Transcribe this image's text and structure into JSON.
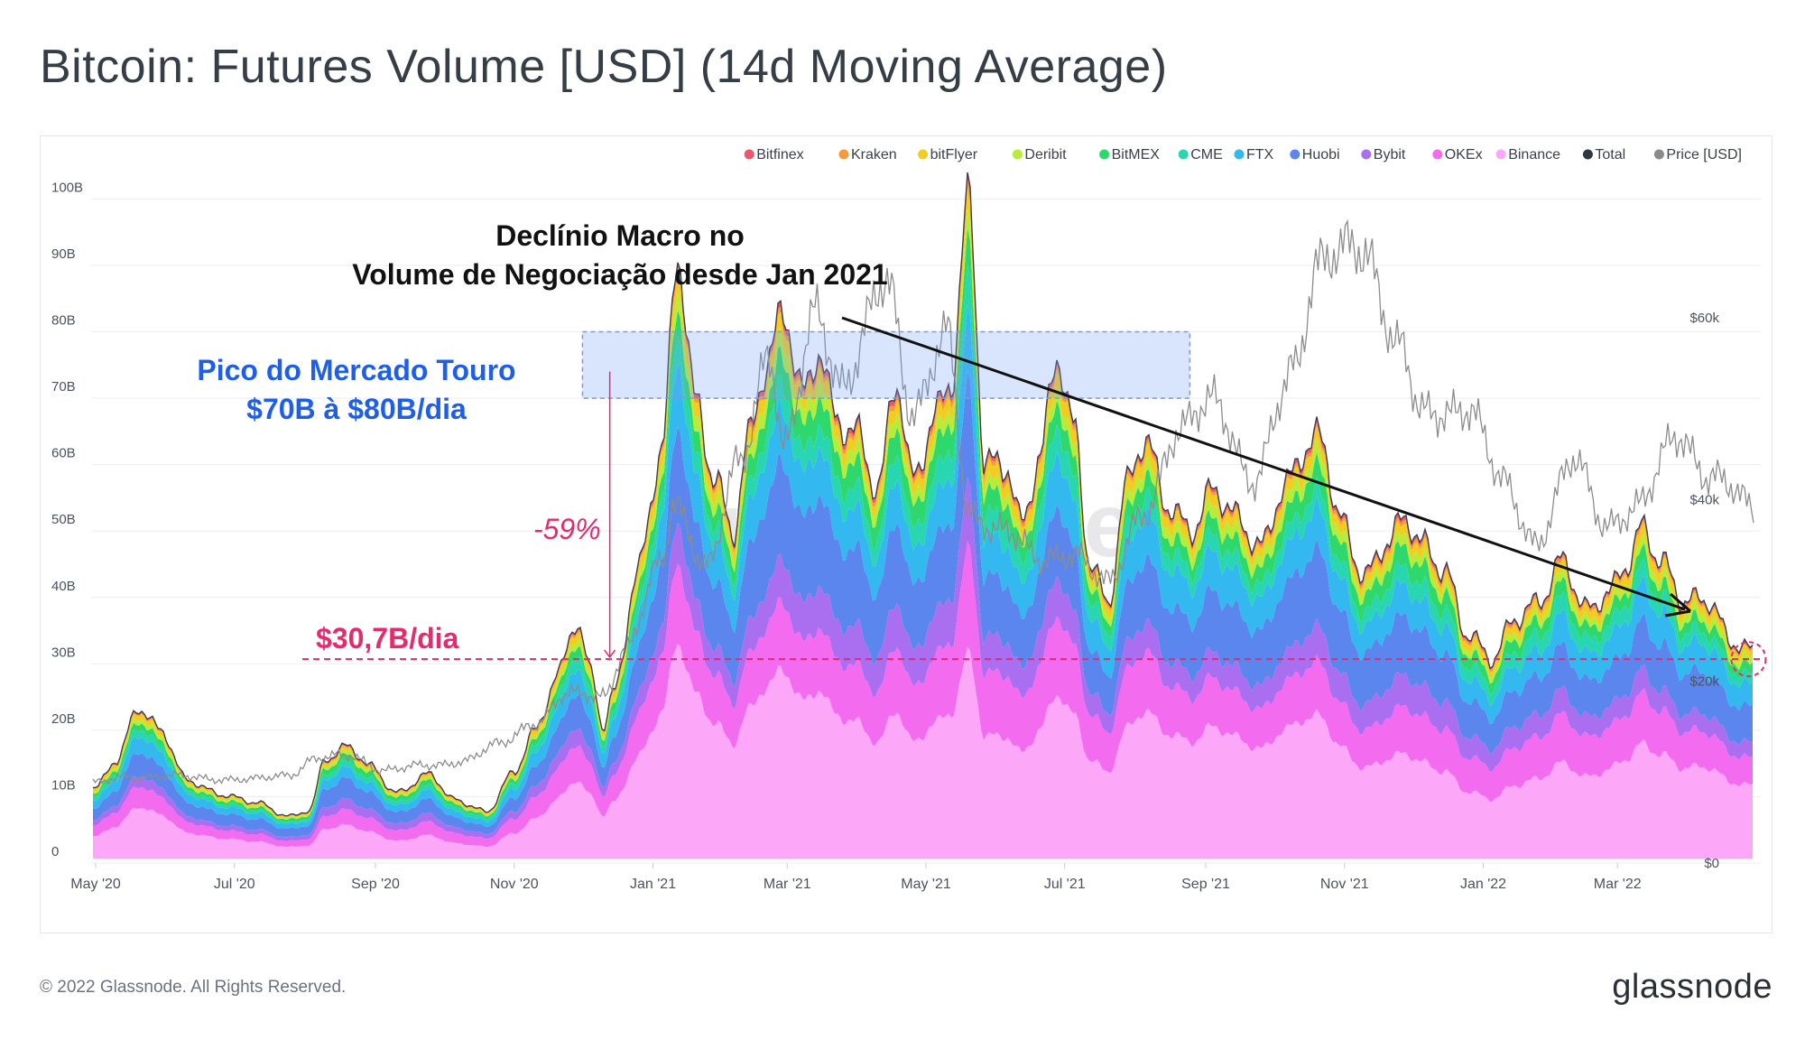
{
  "title": "Bitcoin: Futures Volume [USD] (14d Moving Average)",
  "footer": {
    "copyright": "© 2022 Glassnode. All Rights Reserved.",
    "logo": "glassnode"
  },
  "watermark": "glassnode",
  "annotations": {
    "macro_decline": [
      "Declínio Macro no",
      "Volume de Negociação desde Jan 2021"
    ],
    "bull_peak": [
      "Pico do Mercado Touro",
      "$70B à $80B/dia"
    ],
    "drop_pct": "-59%",
    "current_level": "$30,7B/dia"
  },
  "chart_data": {
    "type": "area",
    "stacked": true,
    "title": "Bitcoin: Futures Volume [USD] (14d Moving Average)",
    "x_ticks": [
      "May '20",
      "Jul '20",
      "Sep '20",
      "Nov '20",
      "Jan '21",
      "Mar '21",
      "May '21",
      "Jul '21",
      "Sep '21",
      "Nov '21",
      "Jan '22",
      "Mar '22"
    ],
    "y_left_ticks": [
      "0",
      "10B",
      "20B",
      "30B",
      "40B",
      "50B",
      "60B",
      "70B",
      "80B",
      "90B",
      "100B"
    ],
    "y_left_range_B": [
      0,
      104
    ],
    "y_right_ticks": [
      "$0",
      "$20k",
      "$40k",
      "$60k"
    ],
    "y_right_range_k": [
      0,
      76
    ],
    "legend_position": "top-right",
    "legend": [
      {
        "name": "Bitfinex",
        "color": "#f0566b"
      },
      {
        "name": "Kraken",
        "color": "#f59b3c"
      },
      {
        "name": "bitFlyer",
        "color": "#f3cc22"
      },
      {
        "name": "Deribit",
        "color": "#b8ec3a"
      },
      {
        "name": "BitMEX",
        "color": "#2ed86c"
      },
      {
        "name": "CME",
        "color": "#28d7b2"
      },
      {
        "name": "FTX",
        "color": "#33b8ef"
      },
      {
        "name": "Huobi",
        "color": "#5b86ee"
      },
      {
        "name": "Bybit",
        "color": "#a96ff0"
      },
      {
        "name": "OKEx",
        "color": "#f36cf0"
      },
      {
        "name": "Binance",
        "color": "#fca7f8"
      },
      {
        "name": "Total",
        "color": "#2f3742"
      },
      {
        "name": "Price [USD]",
        "color": "#8a8a8a"
      }
    ],
    "stack_shares_bottom_to_top": {
      "Binance": 0.34,
      "OKEx": 0.14,
      "Bybit": 0.08,
      "Huobi": 0.16,
      "FTX": 0.1,
      "CME": 0.05,
      "BitMEX": 0.05,
      "Deribit": 0.03,
      "bitFlyer": 0.03,
      "Kraken": 0.01,
      "Bitfinex": 0.01
    },
    "total_volume": [
      {
        "date": "2020-05-01",
        "value_B": 11
      },
      {
        "date": "2020-05-10",
        "value_B": 15
      },
      {
        "date": "2020-05-20",
        "value_B": 22.5
      },
      {
        "date": "2020-05-30",
        "value_B": 19
      },
      {
        "date": "2020-06-10",
        "value_B": 12
      },
      {
        "date": "2020-06-25",
        "value_B": 10
      },
      {
        "date": "2020-07-10",
        "value_B": 9
      },
      {
        "date": "2020-07-25",
        "value_B": 7
      },
      {
        "date": "2020-08-03",
        "value_B": 8
      },
      {
        "date": "2020-08-10",
        "value_B": 16
      },
      {
        "date": "2020-08-20",
        "value_B": 18
      },
      {
        "date": "2020-08-30",
        "value_B": 15
      },
      {
        "date": "2020-09-10",
        "value_B": 11
      },
      {
        "date": "2020-09-25",
        "value_B": 14
      },
      {
        "date": "2020-10-05",
        "value_B": 10
      },
      {
        "date": "2020-10-20",
        "value_B": 8
      },
      {
        "date": "2020-11-01",
        "value_B": 14
      },
      {
        "date": "2020-11-10",
        "value_B": 20
      },
      {
        "date": "2020-11-20",
        "value_B": 28
      },
      {
        "date": "2020-11-28",
        "value_B": 36
      },
      {
        "date": "2020-12-05",
        "value_B": 28
      },
      {
        "date": "2020-12-10",
        "value_B": 20
      },
      {
        "date": "2020-12-15",
        "value_B": 25
      },
      {
        "date": "2020-12-25",
        "value_B": 42
      },
      {
        "date": "2021-01-05",
        "value_B": 60
      },
      {
        "date": "2021-01-12",
        "value_B": 88
      },
      {
        "date": "2021-01-20",
        "value_B": 66
      },
      {
        "date": "2021-01-28",
        "value_B": 56
      },
      {
        "date": "2021-02-05",
        "value_B": 48
      },
      {
        "date": "2021-02-12",
        "value_B": 62
      },
      {
        "date": "2021-02-20",
        "value_B": 74
      },
      {
        "date": "2021-02-28",
        "value_B": 82
      },
      {
        "date": "2021-03-08",
        "value_B": 70
      },
      {
        "date": "2021-03-15",
        "value_B": 78
      },
      {
        "date": "2021-03-22",
        "value_B": 68
      },
      {
        "date": "2021-04-01",
        "value_B": 66
      },
      {
        "date": "2021-04-10",
        "value_B": 58
      },
      {
        "date": "2021-04-18",
        "value_B": 76
      },
      {
        "date": "2021-04-25",
        "value_B": 60
      },
      {
        "date": "2021-05-05",
        "value_B": 70
      },
      {
        "date": "2021-05-12",
        "value_B": 76
      },
      {
        "date": "2021-05-20",
        "value_B": 104
      },
      {
        "date": "2021-05-27",
        "value_B": 62
      },
      {
        "date": "2021-06-05",
        "value_B": 62
      },
      {
        "date": "2021-06-12",
        "value_B": 52
      },
      {
        "date": "2021-06-20",
        "value_B": 62
      },
      {
        "date": "2021-06-28",
        "value_B": 77
      },
      {
        "date": "2021-07-05",
        "value_B": 65
      },
      {
        "date": "2021-07-12",
        "value_B": 45
      },
      {
        "date": "2021-07-20",
        "value_B": 38
      },
      {
        "date": "2021-07-28",
        "value_B": 55
      },
      {
        "date": "2021-08-05",
        "value_B": 62
      },
      {
        "date": "2021-08-15",
        "value_B": 52
      },
      {
        "date": "2021-08-25",
        "value_B": 48
      },
      {
        "date": "2021-09-05",
        "value_B": 54
      },
      {
        "date": "2021-09-15",
        "value_B": 50
      },
      {
        "date": "2021-09-25",
        "value_B": 46
      },
      {
        "date": "2021-10-05",
        "value_B": 55
      },
      {
        "date": "2021-10-15",
        "value_B": 62
      },
      {
        "date": "2021-10-22",
        "value_B": 64
      },
      {
        "date": "2021-10-30",
        "value_B": 52
      },
      {
        "date": "2021-11-10",
        "value_B": 44
      },
      {
        "date": "2021-11-20",
        "value_B": 50
      },
      {
        "date": "2021-11-28",
        "value_B": 54
      },
      {
        "date": "2021-12-05",
        "value_B": 50
      },
      {
        "date": "2021-12-15",
        "value_B": 46
      },
      {
        "date": "2021-12-25",
        "value_B": 36
      },
      {
        "date": "2022-01-05",
        "value_B": 32
      },
      {
        "date": "2022-01-15",
        "value_B": 38
      },
      {
        "date": "2022-01-25",
        "value_B": 40
      },
      {
        "date": "2022-02-05",
        "value_B": 46
      },
      {
        "date": "2022-02-15",
        "value_B": 38
      },
      {
        "date": "2022-02-25",
        "value_B": 40
      },
      {
        "date": "2022-03-05",
        "value_B": 44
      },
      {
        "date": "2022-03-12",
        "value_B": 49
      },
      {
        "date": "2022-03-20",
        "value_B": 44
      },
      {
        "date": "2022-03-30",
        "value_B": 38
      },
      {
        "date": "2022-04-10",
        "value_B": 38
      },
      {
        "date": "2022-04-20",
        "value_B": 32
      },
      {
        "date": "2022-04-30",
        "value_B": 30.7
      }
    ],
    "price_usd_k": [
      {
        "date": "2020-05-01",
        "value": 8.8
      },
      {
        "date": "2020-05-15",
        "value": 9.5
      },
      {
        "date": "2020-06-01",
        "value": 9.6
      },
      {
        "date": "2020-06-20",
        "value": 9.3
      },
      {
        "date": "2020-07-10",
        "value": 9.2
      },
      {
        "date": "2020-07-25",
        "value": 9.7
      },
      {
        "date": "2020-08-05",
        "value": 11.5
      },
      {
        "date": "2020-08-20",
        "value": 11.8
      },
      {
        "date": "2020-09-05",
        "value": 10.3
      },
      {
        "date": "2020-09-25",
        "value": 10.7
      },
      {
        "date": "2020-10-10",
        "value": 11.3
      },
      {
        "date": "2020-10-25",
        "value": 13.0
      },
      {
        "date": "2020-11-10",
        "value": 15.5
      },
      {
        "date": "2020-11-25",
        "value": 18.5
      },
      {
        "date": "2020-12-10",
        "value": 18.5
      },
      {
        "date": "2020-12-20",
        "value": 23.5
      },
      {
        "date": "2021-01-05",
        "value": 33.0
      },
      {
        "date": "2021-01-10",
        "value": 40.0
      },
      {
        "date": "2021-01-25",
        "value": 32.5
      },
      {
        "date": "2021-02-08",
        "value": 44.0
      },
      {
        "date": "2021-02-21",
        "value": 56.5
      },
      {
        "date": "2021-02-28",
        "value": 45.5
      },
      {
        "date": "2021-03-14",
        "value": 60.5
      },
      {
        "date": "2021-03-25",
        "value": 53.0
      },
      {
        "date": "2021-04-14",
        "value": 63.5
      },
      {
        "date": "2021-04-25",
        "value": 50.0
      },
      {
        "date": "2021-05-10",
        "value": 58.0
      },
      {
        "date": "2021-05-20",
        "value": 38.0
      },
      {
        "date": "2021-06-05",
        "value": 37.0
      },
      {
        "date": "2021-06-20",
        "value": 33.0
      },
      {
        "date": "2021-07-05",
        "value": 34.5
      },
      {
        "date": "2021-07-20",
        "value": 30.5
      },
      {
        "date": "2021-08-05",
        "value": 39.0
      },
      {
        "date": "2021-08-20",
        "value": 47.0
      },
      {
        "date": "2021-09-05",
        "value": 51.5
      },
      {
        "date": "2021-09-22",
        "value": 41.5
      },
      {
        "date": "2021-10-10",
        "value": 55.0
      },
      {
        "date": "2021-10-20",
        "value": 66.0
      },
      {
        "date": "2021-11-10",
        "value": 67.5
      },
      {
        "date": "2021-11-25",
        "value": 57.0
      },
      {
        "date": "2021-12-05",
        "value": 49.0
      },
      {
        "date": "2021-12-25",
        "value": 50.5
      },
      {
        "date": "2022-01-10",
        "value": 41.5
      },
      {
        "date": "2022-01-24",
        "value": 35.5
      },
      {
        "date": "2022-02-10",
        "value": 44.0
      },
      {
        "date": "2022-02-24",
        "value": 37.5
      },
      {
        "date": "2022-03-10",
        "value": 39.0
      },
      {
        "date": "2022-03-28",
        "value": 47.5
      },
      {
        "date": "2022-04-10",
        "value": 42.5
      },
      {
        "date": "2022-04-20",
        "value": 41.0
      },
      {
        "date": "2022-04-30",
        "value": 39.0
      }
    ]
  }
}
